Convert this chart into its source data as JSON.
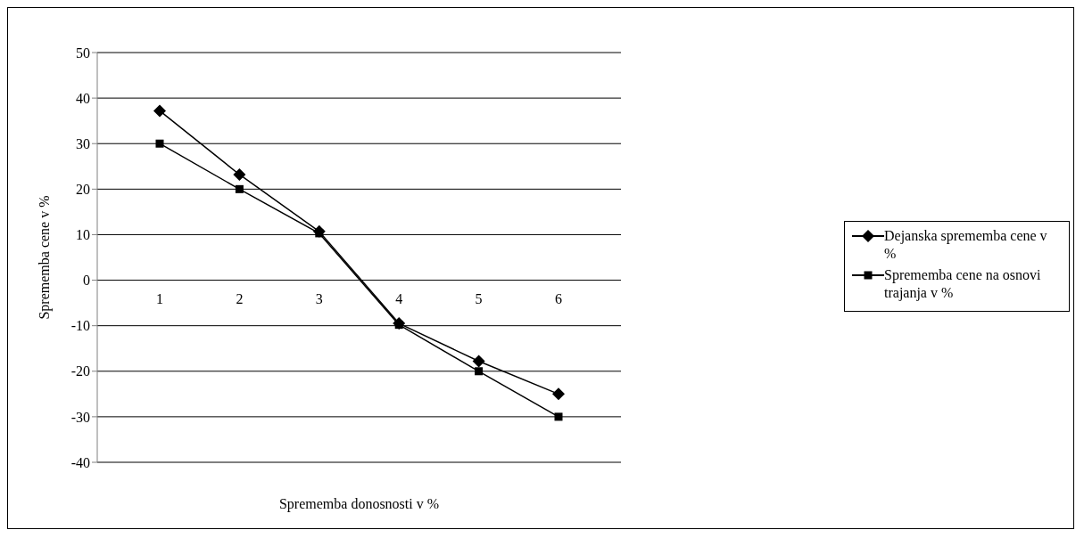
{
  "chart_data": {
    "type": "line",
    "categories": [
      "1",
      "2",
      "3",
      "4",
      "5",
      "6"
    ],
    "series": [
      {
        "name": "Dejanska sprememba cene v %",
        "color": "#000000",
        "marker": "diamond",
        "values": [
          37.2,
          23.2,
          10.7,
          -9.5,
          -17.8,
          -25
        ]
      },
      {
        "name": "Sprememba cene na osnovi trajanja v %",
        "color": "#000000",
        "marker": "square",
        "values": [
          30,
          20,
          10.3,
          -9.8,
          -20,
          -30
        ]
      }
    ],
    "xlabel": "Sprememba donosnosti v %",
    "ylabel": "Sprememba cene v %",
    "ylim": [
      -40,
      50
    ],
    "yticks": [
      -40,
      -30,
      -20,
      -10,
      0,
      10,
      20,
      30,
      40,
      50
    ],
    "grid": "y",
    "legend": "right",
    "line_style": "solid"
  }
}
